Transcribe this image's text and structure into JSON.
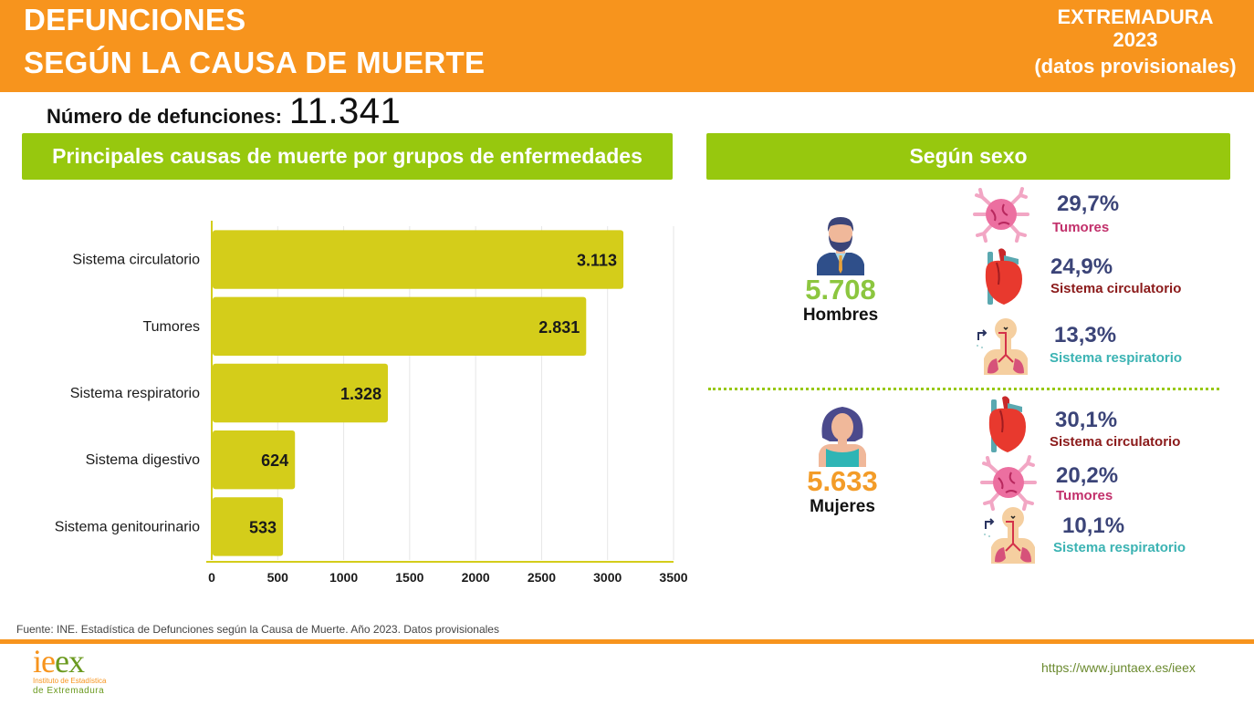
{
  "header": {
    "title_line1": "DEFUNCIONES",
    "title_line2": "SEGÚN LA CAUSA DE  MUERTE",
    "region": "EXTREMADURA",
    "year": "2023",
    "note": "(datos provisionales)"
  },
  "total": {
    "label": "Número de defunciones:",
    "value": "11.341"
  },
  "banners": {
    "left": "Principales causas de muerte por grupos de enfermedades",
    "right": "Según sexo"
  },
  "chart_data": {
    "type": "bar",
    "orientation": "horizontal",
    "title": "Principales causas de muerte por grupos de enfermedades",
    "categories": [
      "Sistema circulatorio",
      "Tumores",
      "Sistema respiratorio",
      "Sistema digestivo",
      "Sistema genitourinario"
    ],
    "values": [
      3113,
      2831,
      1328,
      624,
      533
    ],
    "value_labels": [
      "3.113",
      "2.831",
      "1.328",
      "624",
      "533"
    ],
    "xlabel": "",
    "ylabel": "",
    "xlim": [
      0,
      3500
    ],
    "xticks": [
      0,
      500,
      1000,
      1500,
      2000,
      2500,
      3000,
      3500
    ],
    "grid": true,
    "bar_color": "#d4cd1a"
  },
  "by_sex": {
    "men": {
      "count": "5.708",
      "label": "Hombres",
      "color": "#8cc63f",
      "causes": [
        {
          "pct": "29,7%",
          "name": "Tumores",
          "icon": "tumor-cell-icon",
          "color": "#c2306b"
        },
        {
          "pct": "24,9%",
          "name": "Sistema circulatorio",
          "icon": "heart-icon",
          "color": "#8b1a1a"
        },
        {
          "pct": "13,3%",
          "name": "Sistema respiratorio",
          "icon": "respiratory-system-icon",
          "color": "#3bb3b3"
        }
      ]
    },
    "women": {
      "count": "5.633",
      "label": "Mujeres",
      "color": "#f39c28",
      "causes": [
        {
          "pct": "30,1%",
          "name": "Sistema circulatorio",
          "icon": "heart-icon",
          "color": "#8b1a1a"
        },
        {
          "pct": "20,2%",
          "name": "Tumores",
          "icon": "tumor-cell-icon",
          "color": "#c2306b"
        },
        {
          "pct": "10,1%",
          "name": "Sistema respiratorio",
          "icon": "respiratory-system-icon",
          "color": "#3bb3b3"
        }
      ]
    }
  },
  "footer": {
    "source": "Fuente: INE. Estadística de Defunciones según la Causa de Muerte. Año 2023. Datos provisionales",
    "logo_ie": "ie",
    "logo_ex": "ex",
    "logo_sub1": "Instituto de Estadística",
    "logo_sub2": "de Extremadura",
    "url": "https://www.juntaex.es/ieex"
  }
}
